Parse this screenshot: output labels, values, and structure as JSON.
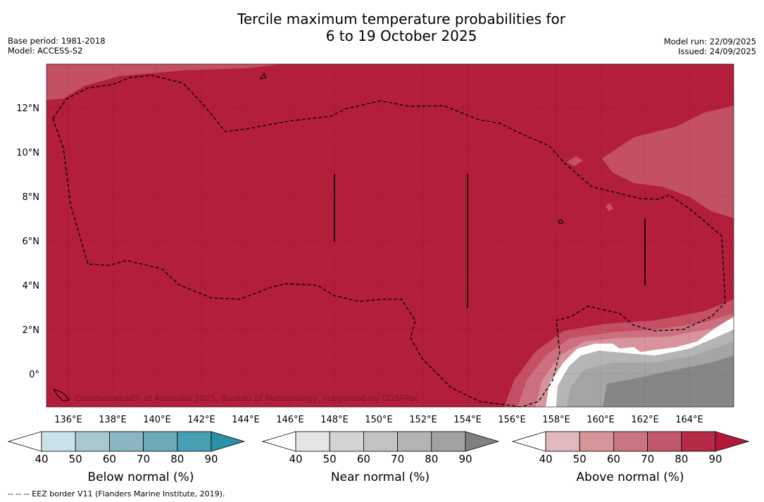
{
  "title_line1": "Tercile maximum temperature probabilities for",
  "title_line2": "6 to 19 October 2025",
  "meta_left": [
    "Base period: 1981-2018",
    "Model: ACCESS-S2"
  ],
  "meta_right": [
    "Model run: 22/09/2025",
    "Issued: 24/09/2025"
  ],
  "map": {
    "lon_ticks": [
      "136°E",
      "138°E",
      "140°E",
      "142°E",
      "144°E",
      "146°E",
      "148°E",
      "150°E",
      "152°E",
      "154°E",
      "156°E",
      "158°E",
      "160°E",
      "162°E",
      "164°E"
    ],
    "lat_ticks": [
      "12°N",
      "10°N",
      "8°N",
      "6°N",
      "4°N",
      "2°N",
      "0°"
    ],
    "copyright": "© Commonwealth of Australia 2025, Bureau of Meteorology, supported by COSPPac",
    "colors": {
      "above_dominant": "#b31e3a",
      "above_70": "#c45063",
      "above_60": "#cc7080",
      "above_50": "#d7949d",
      "near_70": "#b5b5b5",
      "near_80": "#a5a5a5",
      "near_90": "#868686",
      "blank": "#ffffff"
    }
  },
  "colorbars": [
    {
      "label": "Below normal (%)",
      "ticks": [
        "40",
        "50",
        "60",
        "70",
        "80",
        "90"
      ],
      "colors": [
        "#ffffff",
        "#c9e2e9",
        "#a7c8cf",
        "#89b6c0",
        "#6aaab9",
        "#479fb1",
        "#2a91a7"
      ]
    },
    {
      "label": "Near normal (%)",
      "ticks": [
        "40",
        "50",
        "60",
        "70",
        "80",
        "90"
      ],
      "colors": [
        "#ffffff",
        "#e5e5e5",
        "#d4d4d4",
        "#c3c3c3",
        "#b3b3b3",
        "#a2a2a2",
        "#808080"
      ]
    },
    {
      "label": "Above normal (%)",
      "ticks": [
        "40",
        "50",
        "60",
        "70",
        "80",
        "90"
      ],
      "colors": [
        "#ffffff",
        "#e0b8be",
        "#d59599",
        "#ca7680",
        "#c0586a",
        "#b52b45",
        "#b2183a"
      ]
    }
  ],
  "footnote": "--  --  -- EEZ border V11 (Flanders Marine Institute, 2019)."
}
